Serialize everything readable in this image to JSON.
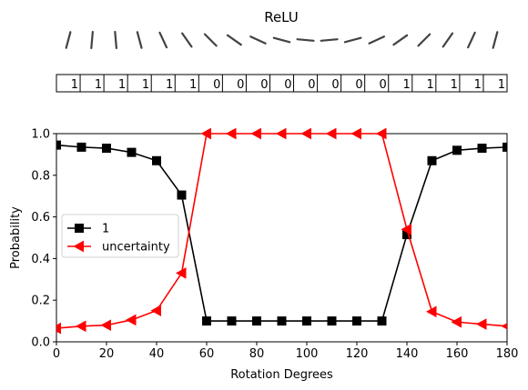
{
  "title": "ReLU",
  "predictions": [
    "1",
    "1",
    "1",
    "1",
    "1",
    "1",
    "0",
    "0",
    "0",
    "0",
    "0",
    "0",
    "0",
    "0",
    "1",
    "1",
    "1",
    "1",
    "1"
  ],
  "chart_data": {
    "type": "line",
    "title": "",
    "xlabel": "Rotation Degrees",
    "ylabel": "Probability",
    "xlim": [
      0,
      180
    ],
    "ylim": [
      0,
      1
    ],
    "x_ticks": [
      "0",
      "20",
      "40",
      "60",
      "80",
      "100",
      "120",
      "140",
      "160",
      "180"
    ],
    "y_ticks": [
      "0.0",
      "0.2",
      "0.4",
      "0.6",
      "0.8",
      "1.0"
    ],
    "x": [
      0,
      10,
      20,
      30,
      40,
      50,
      60,
      70,
      80,
      90,
      100,
      110,
      120,
      130,
      140,
      150,
      160,
      170,
      180
    ],
    "series": [
      {
        "name": "1",
        "color": "#000000",
        "marker": "square",
        "values": [
          0.945,
          0.935,
          0.93,
          0.91,
          0.87,
          0.705,
          0.1,
          0.1,
          0.1,
          0.1,
          0.1,
          0.1,
          0.1,
          0.1,
          0.515,
          0.87,
          0.92,
          0.93,
          0.935
        ]
      },
      {
        "name": "uncertainty",
        "color": "#ff0000",
        "marker": "triangle-left",
        "values": [
          0.065,
          0.075,
          0.08,
          0.105,
          0.15,
          0.33,
          1.0,
          1.0,
          1.0,
          1.0,
          1.0,
          1.0,
          1.0,
          1.0,
          0.54,
          0.145,
          0.095,
          0.085,
          0.075
        ]
      }
    ],
    "legend_position": "center-left",
    "grid": false
  }
}
